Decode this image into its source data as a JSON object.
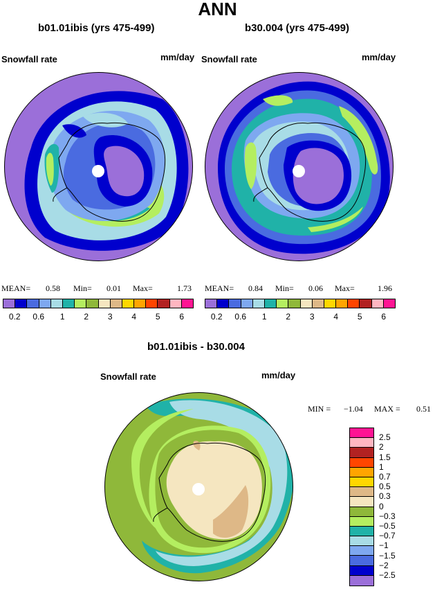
{
  "header": {
    "title": "ANN"
  },
  "panel_left": {
    "case": "b01.01ibis (yrs 475-499)",
    "variable": "Snowfall rate",
    "units": "mm/day",
    "stats": {
      "mean_label": "MEAN=",
      "mean": "0.58",
      "min_label": "Min=",
      "min": "0.01",
      "max_label": "Max=",
      "max": "1.73"
    }
  },
  "panel_right": {
    "case": "b30.004 (yrs 475-499)",
    "variable": "Snowfall rate",
    "units": "mm/day",
    "stats": {
      "mean_label": "MEAN=",
      "mean": "0.84",
      "min_label": "Min=",
      "min": "0.06",
      "max_label": "Max=",
      "max": "1.96"
    }
  },
  "panel_diff": {
    "case": "b01.01ibis - b30.004",
    "variable": "Snowfall rate",
    "units": "mm/day",
    "stats": {
      "min_label": "MIN =",
      "min": "−1.04",
      "max_label": "MAX =",
      "max": "0.51"
    }
  },
  "colorbar_abs": {
    "colors": [
      "#9b6fd9",
      "#0000cd",
      "#4a6be0",
      "#7ea8f0",
      "#a8dce6",
      "#20b2a8",
      "#b4ee60",
      "#8fb83a",
      "#f5e6c0",
      "#deb887",
      "#ffd700",
      "#ffa500",
      "#ff4500",
      "#b22222",
      "#ffb6c1",
      "#ff1493"
    ],
    "labels": [
      "0.2",
      "0.6",
      "1",
      "2",
      "3",
      "4",
      "5",
      "6"
    ]
  },
  "colorbar_diff": {
    "colors_top_to_bottom": [
      "#ff1493",
      "#ffb6c1",
      "#b22222",
      "#ff4500",
      "#ffa500",
      "#ffd700",
      "#deb887",
      "#f5e6c0",
      "#8fb83a",
      "#b4ee60",
      "#20b2a8",
      "#a8dce6",
      "#7ea8f0",
      "#4a6be0",
      "#0000cd",
      "#9b6fd9"
    ],
    "labels": [
      "2.5",
      "2",
      "1.5",
      "1",
      "0.7",
      "0.5",
      "0.3",
      "0",
      "−0.3",
      "−0.5",
      "−0.7",
      "−1",
      "−1.5",
      "−2",
      "−2.5"
    ]
  },
  "colors": {
    "level_purple": "#9b6fd9",
    "level_darkblue": "#0000cd",
    "level_blue": "#4a6be0",
    "level_lightblue": "#a8dce6",
    "level_teal": "#20b2a8",
    "level_lightgreen": "#b4ee60",
    "level_olive": "#8fb83a",
    "level_cream": "#f5e6c0",
    "level_tan": "#deb887"
  }
}
